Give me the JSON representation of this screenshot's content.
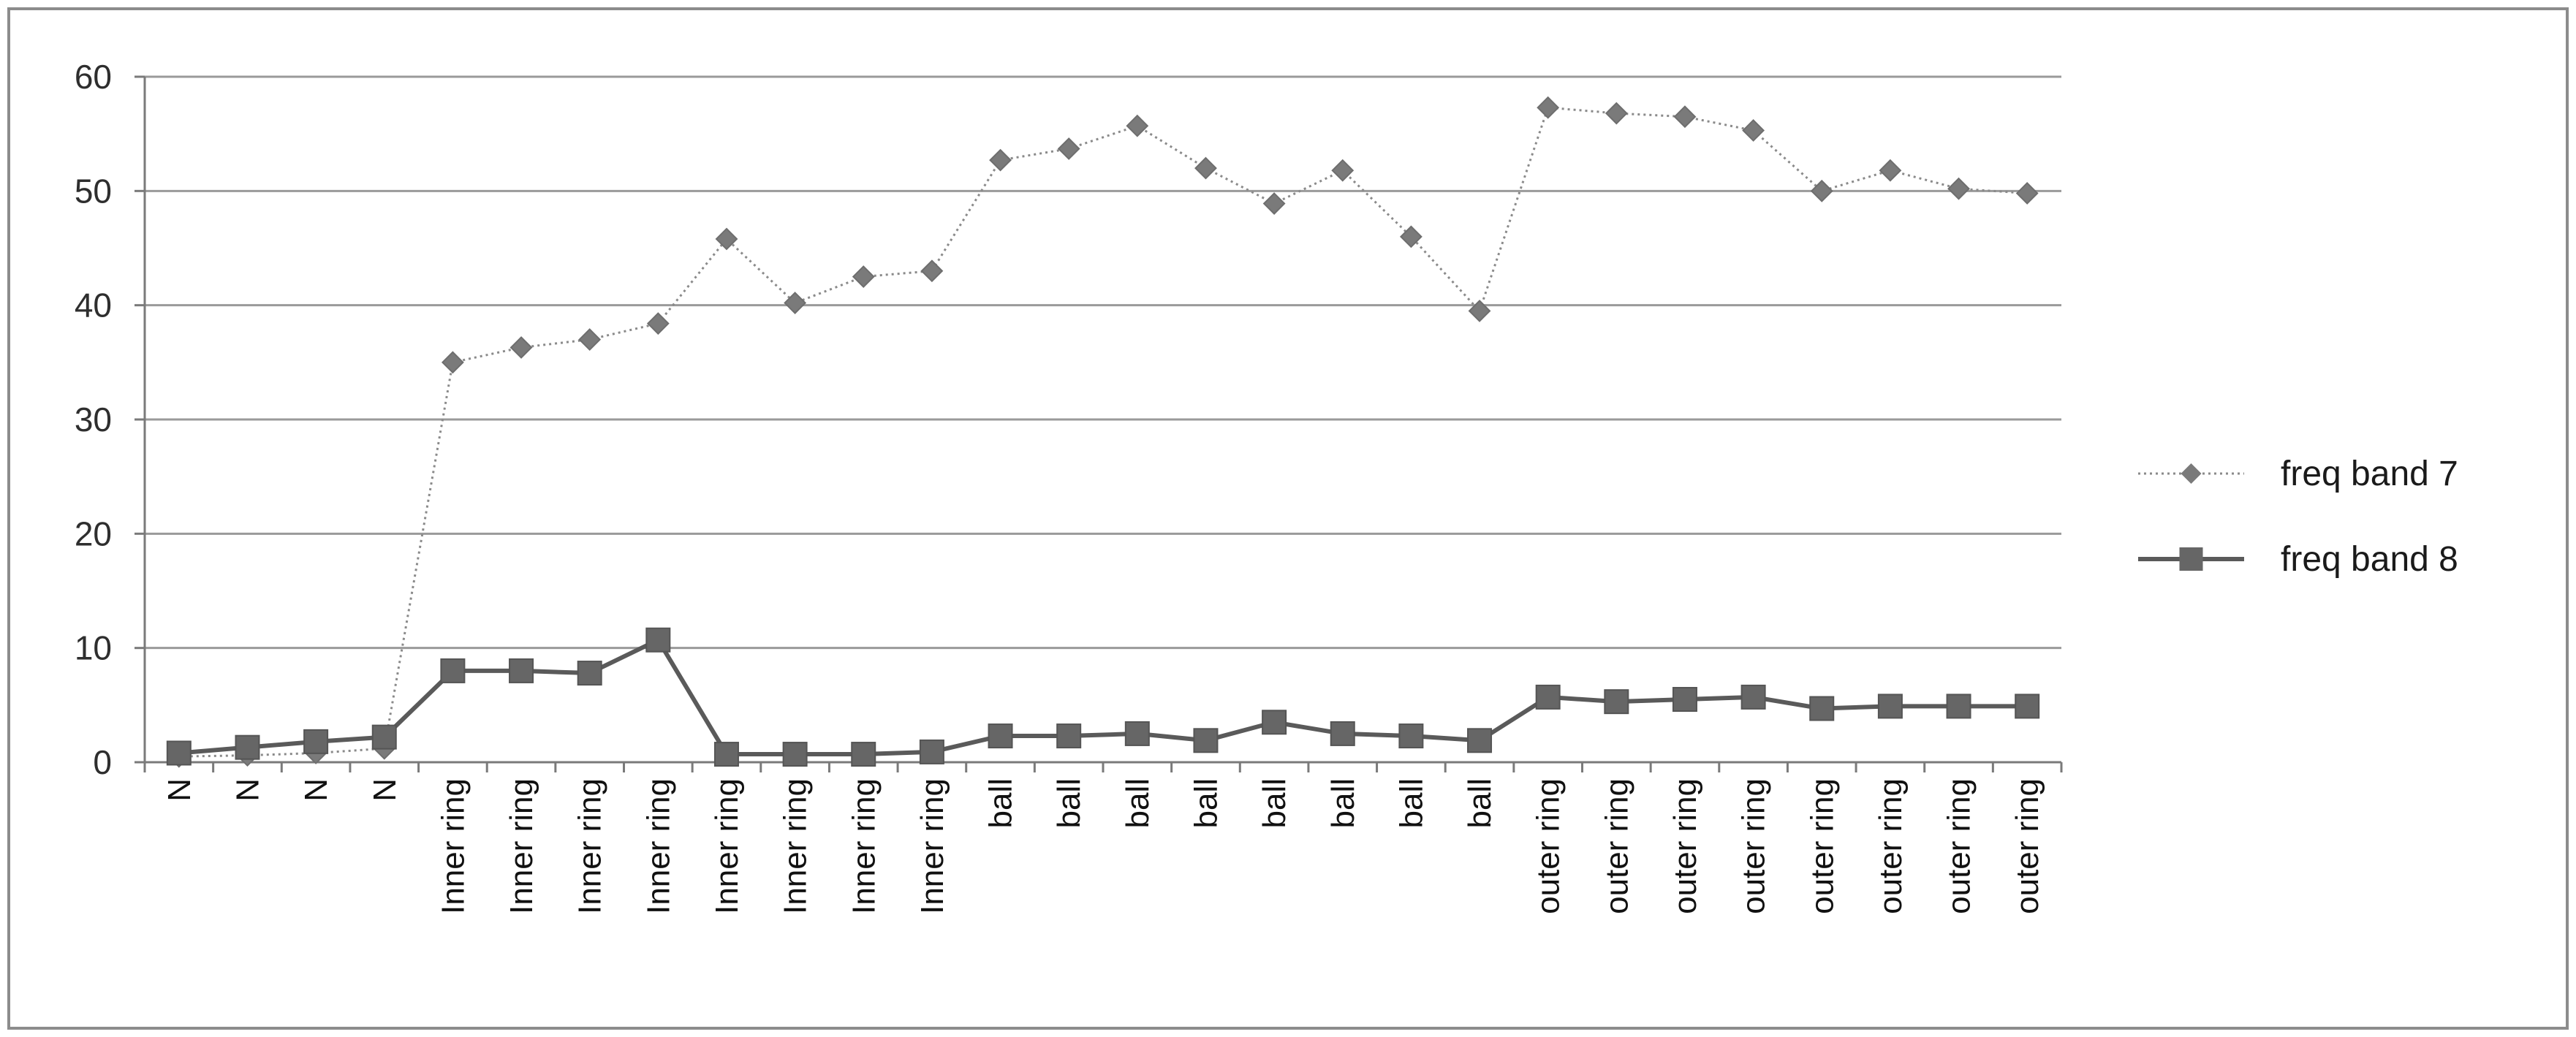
{
  "chart_data": {
    "type": "line",
    "title": "",
    "xlabel": "",
    "ylabel": "",
    "ylim": [
      0,
      60
    ],
    "yticks": [
      0,
      10,
      20,
      30,
      40,
      50,
      60
    ],
    "grid": true,
    "legend_position": "right",
    "categories": [
      "N",
      "N",
      "N",
      "N",
      "Inner ring",
      "Inner ring",
      "Inner ring",
      "Inner ring",
      "Inner ring",
      "Inner ring",
      "Inner ring",
      "Inner ring",
      "ball",
      "ball",
      "ball",
      "ball",
      "ball",
      "ball",
      "ball",
      "ball",
      "outer ring",
      "outer ring",
      "outer ring",
      "outer ring",
      "outer ring",
      "outer ring",
      "outer ring",
      "outer ring"
    ],
    "series": [
      {
        "name": "freq band 7",
        "style": "dotted-diamond",
        "color": "#808080",
        "values": [
          0.5,
          0.6,
          0.8,
          1.2,
          35.0,
          36.3,
          37.0,
          38.4,
          45.8,
          40.2,
          42.5,
          43.0,
          52.7,
          53.7,
          55.7,
          52.0,
          48.9,
          51.8,
          46.0,
          39.5,
          57.3,
          56.8,
          56.5,
          55.3,
          50.0,
          51.8,
          50.2,
          49.8
        ]
      },
      {
        "name": "freq band 8",
        "style": "solid-square",
        "color": "#5a5a5a",
        "values": [
          0.8,
          1.3,
          1.8,
          2.2,
          8.0,
          8.0,
          7.8,
          10.7,
          0.7,
          0.7,
          0.7,
          0.9,
          2.3,
          2.3,
          2.5,
          1.9,
          3.5,
          2.5,
          2.3,
          1.9,
          5.7,
          5.3,
          5.5,
          5.7,
          4.7,
          4.9,
          4.9,
          4.9
        ]
      }
    ]
  }
}
